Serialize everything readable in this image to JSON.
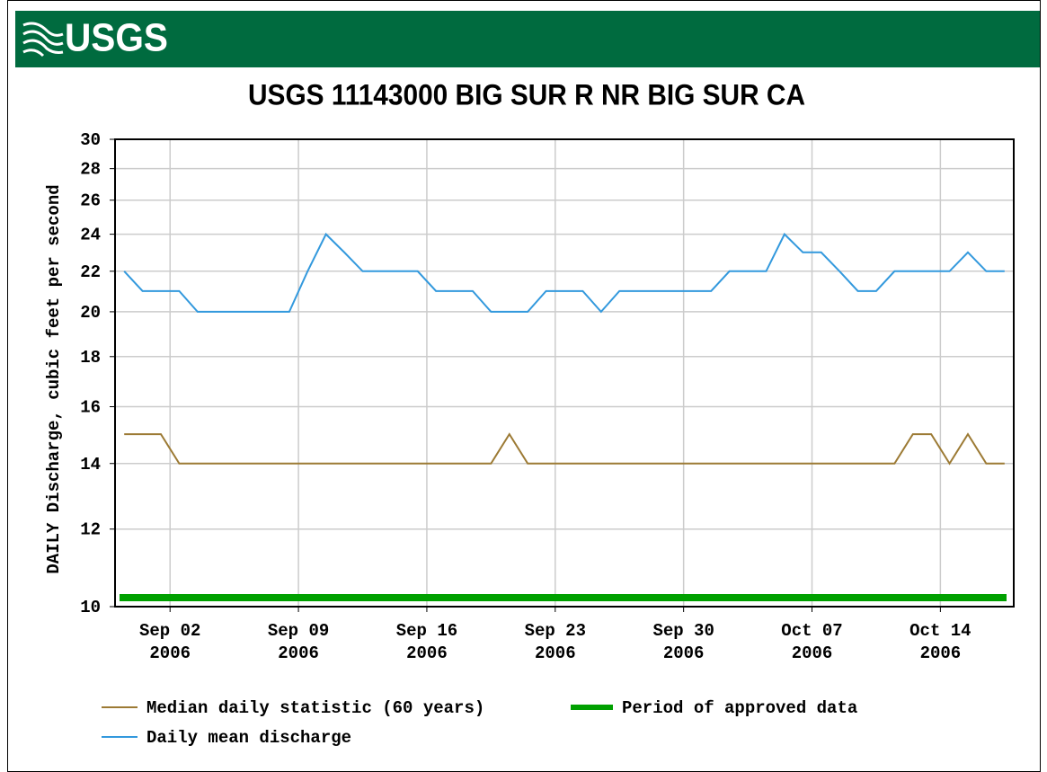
{
  "header": {
    "logo": "USGS"
  },
  "chart_data": {
    "type": "line",
    "title": "USGS 11143000 BIG SUR R NR BIG SUR CA",
    "y_label": "DAILY Discharge, cubic feet per second",
    "x": [
      "2006-08-30T12:00",
      "2006-08-31T12:00",
      "2006-09-01T12:00",
      "2006-09-02T12:00",
      "2006-09-03T12:00",
      "2006-09-04T12:00",
      "2006-09-05T12:00",
      "2006-09-06T12:00",
      "2006-09-07T12:00",
      "2006-09-08T12:00",
      "2006-09-09T12:00",
      "2006-09-10T12:00",
      "2006-09-11T12:00",
      "2006-09-12T12:00",
      "2006-09-13T12:00",
      "2006-09-14T12:00",
      "2006-09-15T12:00",
      "2006-09-16T12:00",
      "2006-09-17T12:00",
      "2006-09-18T12:00",
      "2006-09-19T12:00",
      "2006-09-20T12:00",
      "2006-09-21T12:00",
      "2006-09-22T12:00",
      "2006-09-23T12:00",
      "2006-09-24T12:00",
      "2006-09-25T12:00",
      "2006-09-26T12:00",
      "2006-09-27T12:00",
      "2006-09-28T12:00",
      "2006-09-29T12:00",
      "2006-09-30T12:00",
      "2006-10-01T12:00",
      "2006-10-02T12:00",
      "2006-10-03T12:00",
      "2006-10-04T12:00",
      "2006-10-05T12:00",
      "2006-10-06T12:00",
      "2006-10-07T12:00",
      "2006-10-08T12:00",
      "2006-10-09T12:00",
      "2006-10-10T12:00",
      "2006-10-11T12:00",
      "2006-10-12T12:00",
      "2006-10-13T12:00",
      "2006-10-14T12:00",
      "2006-10-15T12:00",
      "2006-10-16T12:00",
      "2006-10-17T12:00"
    ],
    "series": [
      {
        "name": "Median daily statistic (60 years)",
        "color": "#9c7a34",
        "values": [
          15,
          15,
          15,
          14,
          14,
          14,
          14,
          14,
          14,
          14,
          14,
          14,
          14,
          14,
          14,
          14,
          14,
          14,
          14,
          14,
          14,
          15,
          14,
          14,
          14,
          14,
          14,
          14,
          14,
          14,
          14,
          14,
          14,
          14,
          14,
          14,
          14,
          14,
          14,
          14,
          14,
          14,
          14,
          15,
          15,
          14,
          15,
          14,
          14
        ]
      },
      {
        "name": "Daily mean discharge",
        "color": "#3399dd",
        "values": [
          22,
          21,
          21,
          21,
          20,
          20,
          20,
          20,
          20,
          20,
          22,
          24,
          23,
          22,
          22,
          22,
          22,
          21,
          21,
          21,
          20,
          20,
          20,
          21,
          21,
          21,
          20,
          21,
          21,
          21,
          21,
          21,
          21,
          22,
          22,
          22,
          24,
          23,
          23,
          22,
          21,
          21,
          22,
          22,
          22,
          22,
          23,
          22,
          22
        ]
      },
      {
        "name": "Period of approved data",
        "color": "#00a000",
        "period": [
          "2006-08-30",
          "2006-10-18"
        ]
      }
    ],
    "xlim": [
      "2006-08-30",
      "2006-10-18"
    ],
    "xticks": [
      {
        "value": "2006-09-02",
        "label": "Sep 02 2006"
      },
      {
        "value": "2006-09-09",
        "label": "Sep 09 2006"
      },
      {
        "value": "2006-09-16",
        "label": "Sep 16 2006"
      },
      {
        "value": "2006-09-23",
        "label": "Sep 23 2006"
      },
      {
        "value": "2006-09-30",
        "label": "Sep 30 2006"
      },
      {
        "value": "2006-10-07",
        "label": "Oct 07 2006"
      },
      {
        "value": "2006-10-14",
        "label": "Oct 14 2006"
      }
    ],
    "ylim": [
      10,
      30
    ],
    "yticks": [
      10,
      12,
      14,
      16,
      18,
      20,
      22,
      24,
      26,
      28,
      30
    ],
    "y_scale": "log",
    "grid": true
  }
}
